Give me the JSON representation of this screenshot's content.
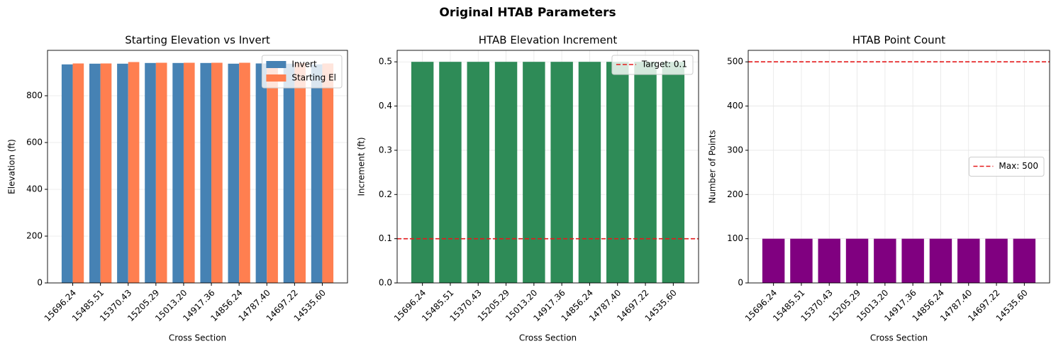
{
  "title": "Original HTAB Parameters",
  "chart_data": [
    {
      "type": "bar",
      "title": "Starting Elevation vs Invert",
      "x_label": "Cross Section",
      "y_label": "Elevation (ft)",
      "categories": [
        "15696.24",
        "15485.51",
        "15370.43",
        "15205.29",
        "15013.20",
        "14917.36",
        "14856.24",
        "14787.40",
        "14697.22",
        "14535.60"
      ],
      "series": [
        {
          "name": "Invert",
          "color": "#4682b4",
          "values": [
            934,
            937,
            937,
            940,
            940,
            940,
            937,
            938,
            937,
            934
          ]
        },
        {
          "name": "Starting El",
          "color": "#ff7f50",
          "values": [
            938,
            938,
            944,
            941,
            941,
            941,
            941,
            941,
            940,
            938
          ]
        }
      ],
      "ylim": [
        0,
        994
      ],
      "yticks": [
        0,
        200,
        400,
        600,
        800
      ],
      "grid": "y",
      "legend": "upper right"
    },
    {
      "type": "bar",
      "title": "HTAB Elevation Increment",
      "x_label": "Cross Section",
      "y_label": "Increment (ft)",
      "categories": [
        "15696.24",
        "15485.51",
        "15370.43",
        "15205.29",
        "15013.20",
        "14917.36",
        "14856.24",
        "14787.40",
        "14697.22",
        "14535.60"
      ],
      "series": [
        {
          "color": "#2e8b57",
          "values": [
            0.5,
            0.5,
            0.5,
            0.5,
            0.5,
            0.5,
            0.5,
            0.5,
            0.5,
            0.5
          ]
        }
      ],
      "hlines": [
        {
          "y": 0.1,
          "label": "Target: 0.1",
          "color": "#e41a1c"
        }
      ],
      "ylim": [
        0,
        0.526
      ],
      "yticks": [
        {
          "value": 0,
          "label": "0.0"
        },
        0.1,
        0.2,
        0.3,
        0.4,
        0.5
      ],
      "grid": "both",
      "legend": "upper right"
    },
    {
      "type": "bar",
      "title": "HTAB Point Count",
      "x_label": "Cross Section",
      "y_label": "Number of Points",
      "categories": [
        "15696.24",
        "15485.51",
        "15370.43",
        "15205.29",
        "15013.20",
        "14917.36",
        "14856.24",
        "14787.40",
        "14697.22",
        "14535.60"
      ],
      "series": [
        {
          "color": "#800080",
          "values": [
            100,
            100,
            100,
            100,
            100,
            100,
            100,
            100,
            100,
            100
          ]
        }
      ],
      "hlines": [
        {
          "y": 500,
          "label": "Max: 500",
          "color": "#e41a1c"
        }
      ],
      "ylim": [
        0,
        526
      ],
      "yticks": [
        0,
        100,
        200,
        300,
        400,
        500
      ],
      "grid": "both",
      "legend": "center right"
    }
  ]
}
